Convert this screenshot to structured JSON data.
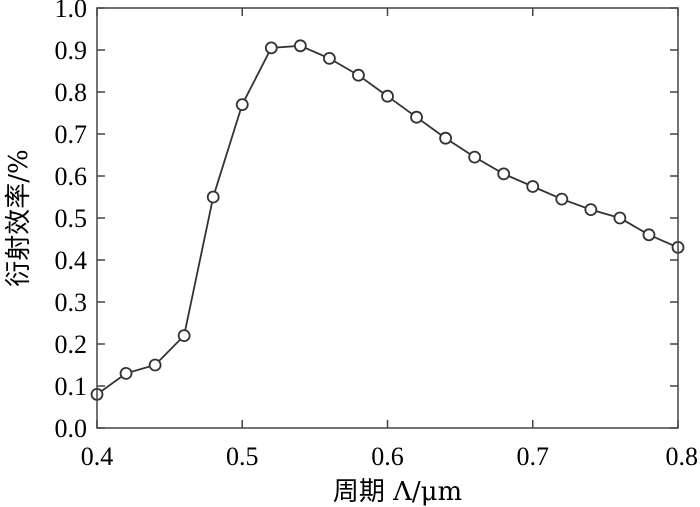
{
  "chart_data": {
    "type": "line",
    "title": "",
    "xlabel": "周期 Λ/μm",
    "ylabel": "衍射效率/%",
    "xlim": [
      0.4,
      0.8
    ],
    "ylim": [
      0.0,
      1.0
    ],
    "x_ticks": [
      "0.4",
      "0.5",
      "0.6",
      "0.7",
      "0.8"
    ],
    "x_tick_values": [
      0.4,
      0.5,
      0.6,
      0.7,
      0.8
    ],
    "y_ticks": [
      "0.0",
      "0.1",
      "0.2",
      "0.3",
      "0.4",
      "0.5",
      "0.6",
      "0.7",
      "0.8",
      "0.9",
      "1.0"
    ],
    "y_tick_values": [
      0.0,
      0.1,
      0.2,
      0.3,
      0.4,
      0.5,
      0.6,
      0.7,
      0.8,
      0.9,
      1.0
    ],
    "grid": false,
    "legend": "none",
    "marker": "circle",
    "color": "#333333",
    "series": [
      {
        "x": [
          0.4,
          0.42,
          0.44,
          0.46,
          0.48,
          0.5,
          0.52,
          0.54,
          0.56,
          0.58,
          0.6,
          0.62,
          0.64,
          0.66,
          0.68,
          0.7,
          0.72,
          0.74,
          0.76,
          0.78,
          0.8
        ],
        "y": [
          0.08,
          0.13,
          0.15,
          0.22,
          0.55,
          0.77,
          0.905,
          0.91,
          0.88,
          0.84,
          0.79,
          0.74,
          0.69,
          0.645,
          0.605,
          0.575,
          0.545,
          0.52,
          0.5,
          0.46,
          0.43
        ]
      }
    ]
  }
}
